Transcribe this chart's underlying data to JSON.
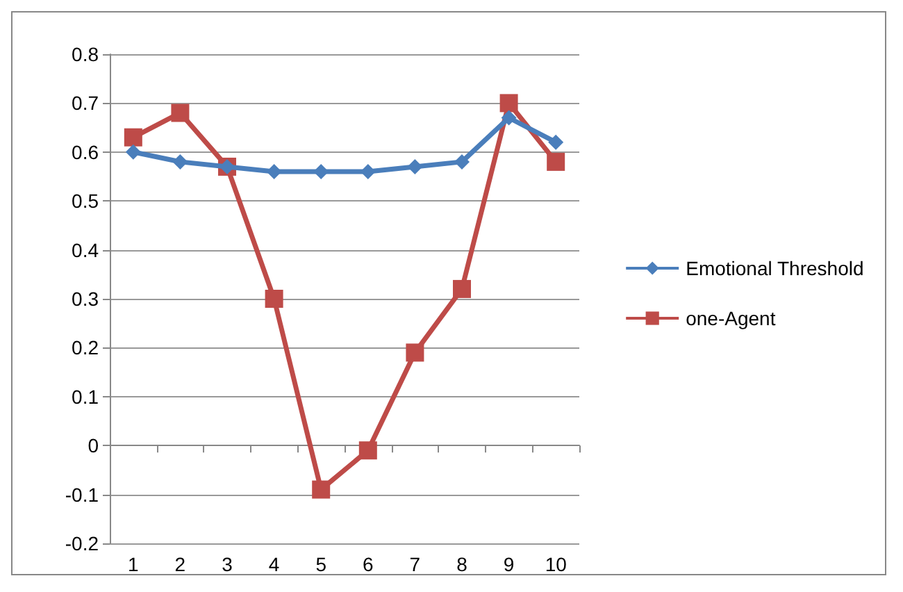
{
  "chart_data": {
    "type": "line",
    "categories": [
      "1",
      "2",
      "3",
      "4",
      "5",
      "6",
      "7",
      "8",
      "9",
      "10"
    ],
    "series": [
      {
        "name": "Emotional Threshold",
        "color": "#4a7ebb",
        "marker": "diamond",
        "values": [
          0.6,
          0.58,
          0.57,
          0.56,
          0.56,
          0.56,
          0.57,
          0.58,
          0.67,
          0.62
        ]
      },
      {
        "name": "one-Agent",
        "color": "#be4b48",
        "marker": "square",
        "values": [
          0.63,
          0.68,
          0.57,
          0.3,
          -0.09,
          -0.01,
          0.19,
          0.32,
          0.7,
          0.58
        ]
      }
    ],
    "ylim": [
      -0.2,
      0.8
    ],
    "yticks": [
      -0.2,
      -0.1,
      0,
      0.1,
      0.2,
      0.3,
      0.4,
      0.5,
      0.6,
      0.7,
      0.8
    ],
    "grid": "y",
    "legend": "right"
  }
}
